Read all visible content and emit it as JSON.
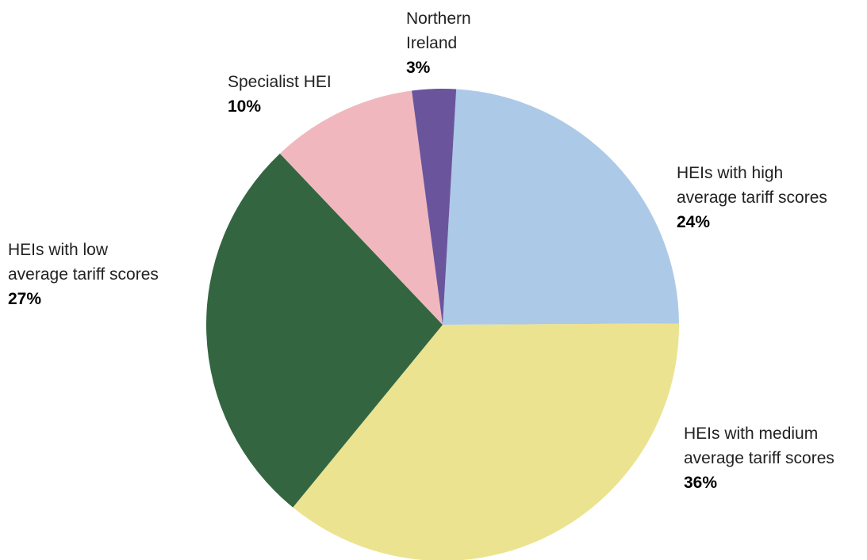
{
  "chart_data": {
    "type": "pie",
    "categories": [
      "HEIs with high\naverage tariff scores",
      "HEIs with medium\naverage tariff scores",
      "HEIs with low\naverage tariff scores",
      "Specialist HEI",
      "Northern\nIreland"
    ],
    "values": [
      24,
      36,
      27,
      10,
      3
    ],
    "value_labels": [
      "24%",
      "36%",
      "27%",
      "10%",
      "3%"
    ],
    "colors": [
      "#adc9e8",
      "#ebe38f",
      "#336640",
      "#f0b8be",
      "#6a559c"
    ]
  }
}
